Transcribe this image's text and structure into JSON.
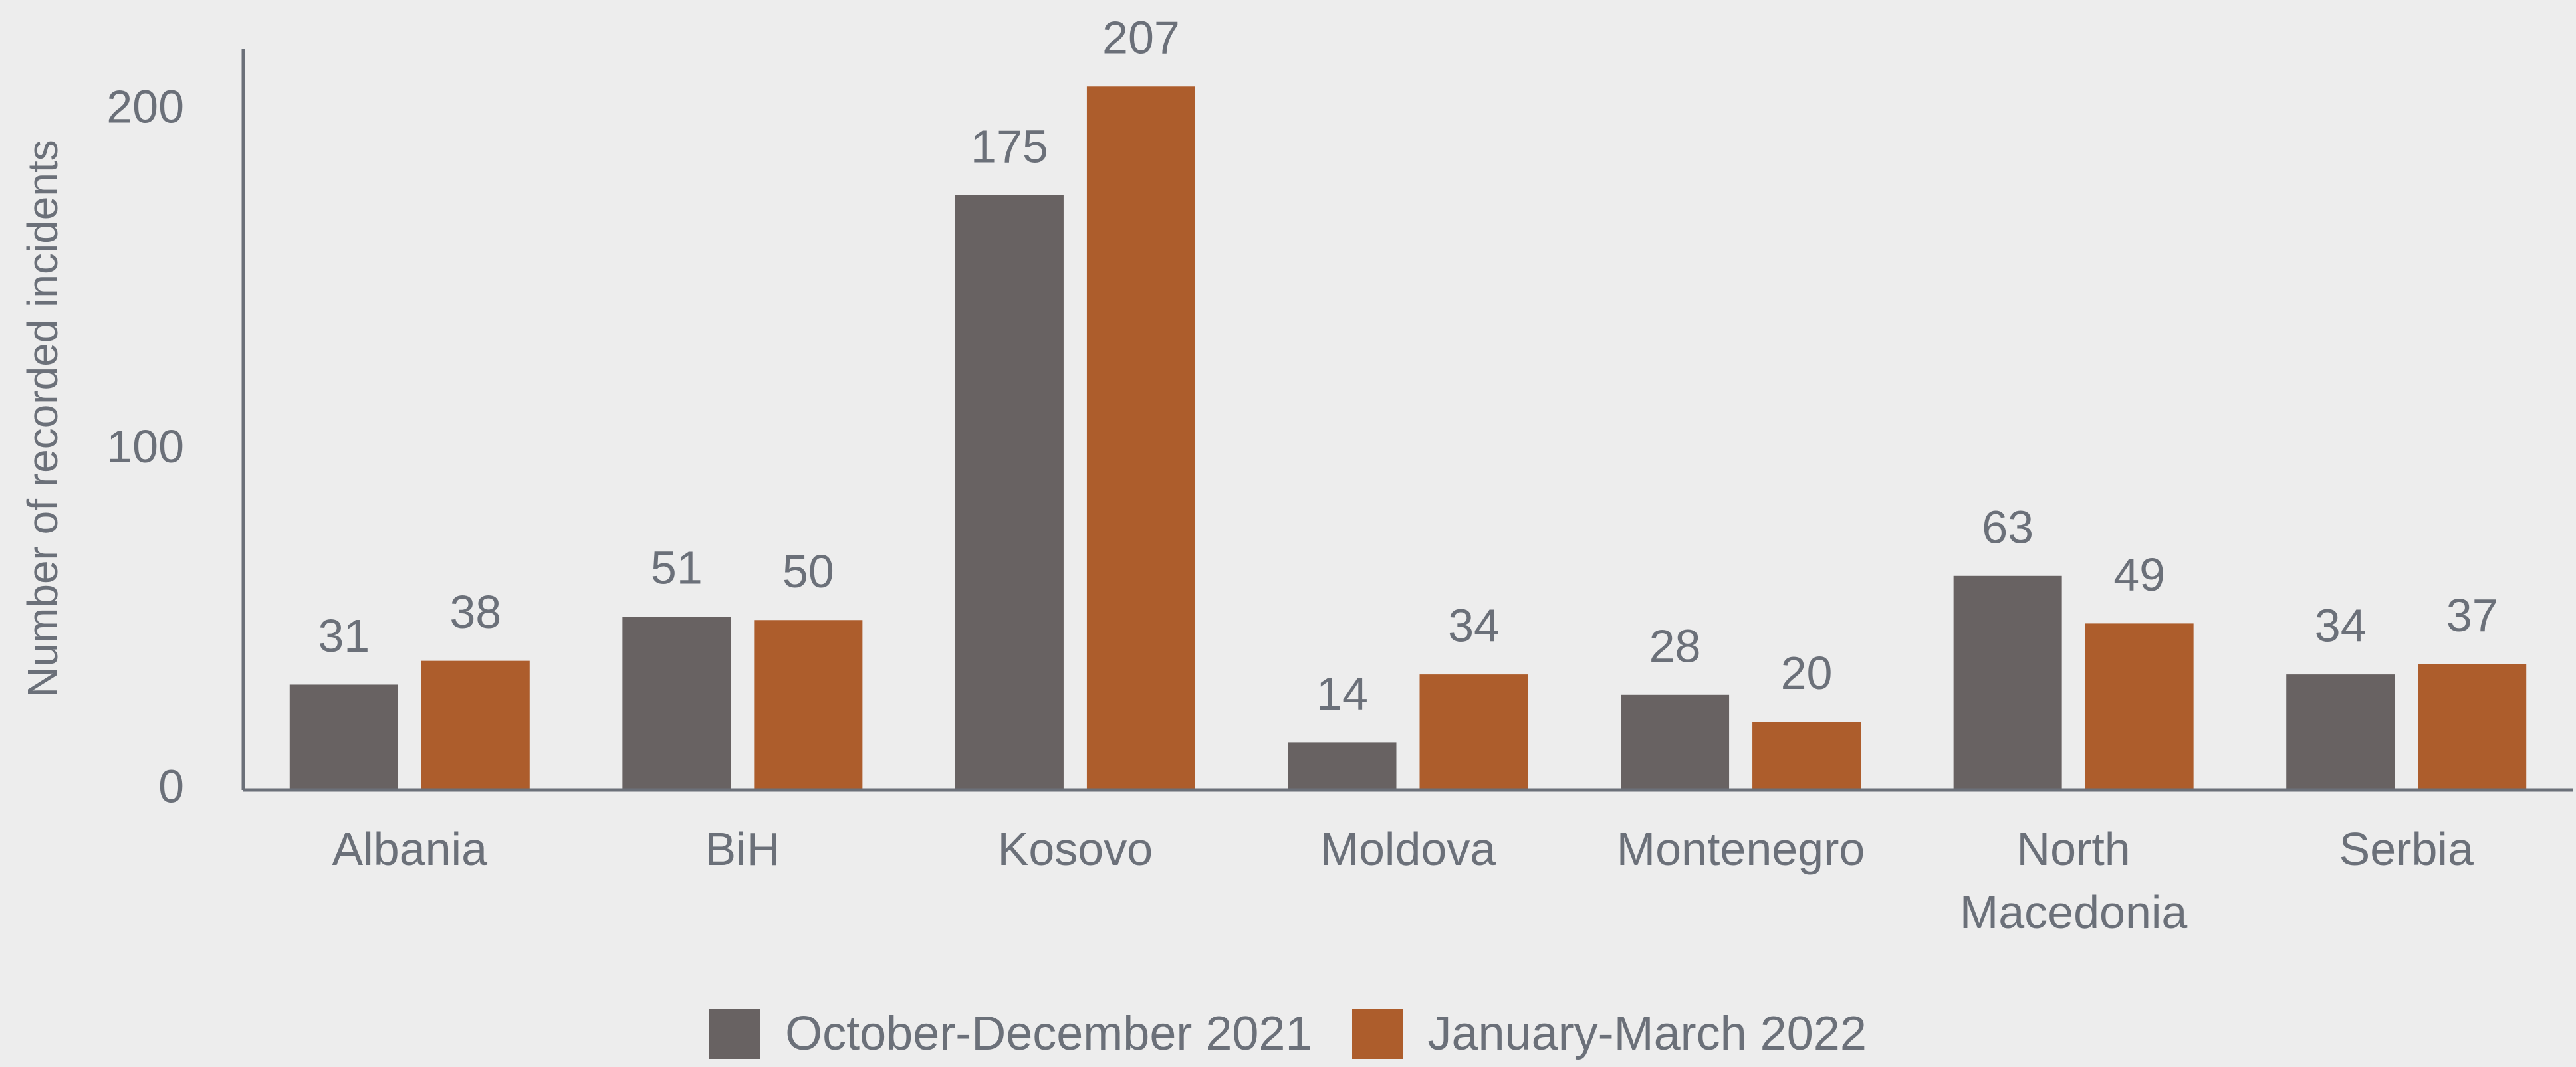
{
  "chart_data": {
    "type": "bar",
    "y_axis_label": "Number of recorded incidents",
    "categories": [
      "Albania",
      "BiH",
      "Kosovo",
      "Moldova",
      "Montenegro",
      "North Macedonia",
      "Serbia"
    ],
    "series": [
      {
        "name": "October-December 2021",
        "color": "#686262",
        "values": [
          31,
          51,
          175,
          14,
          28,
          63,
          34
        ]
      },
      {
        "name": "January-March 2022",
        "color": "#ad5d2c",
        "values": [
          38,
          50,
          207,
          34,
          20,
          49,
          37
        ]
      }
    ],
    "ylim": [
      0,
      218
    ],
    "yticks": [
      0,
      100,
      200
    ],
    "grid": false,
    "legend": "bottom"
  }
}
